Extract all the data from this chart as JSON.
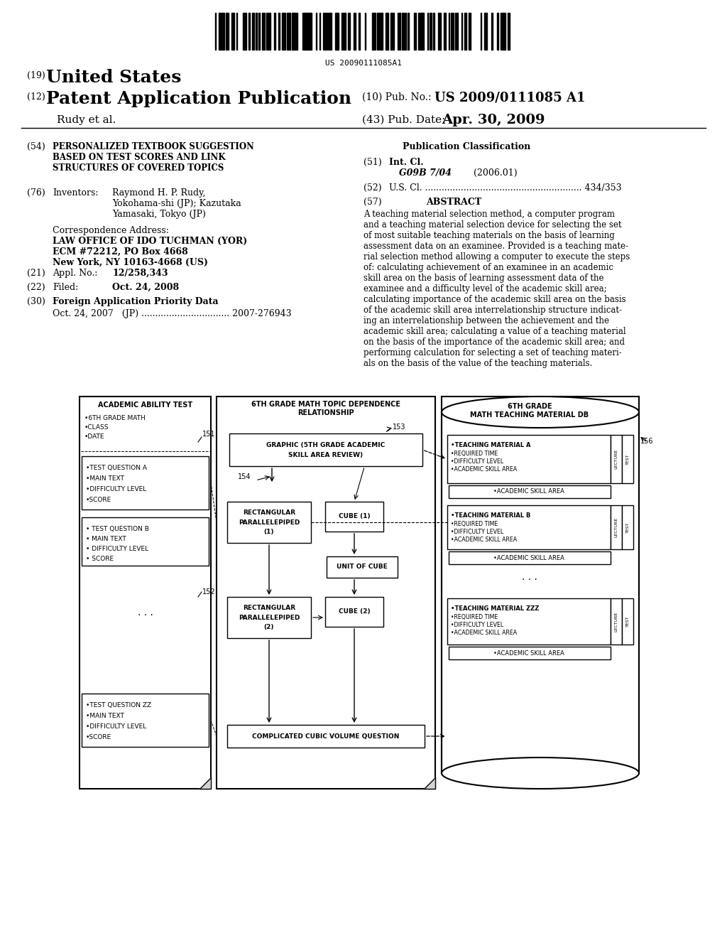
{
  "bg_color": "#ffffff",
  "barcode_text": "US 20090111085A1",
  "title19": "(19)",
  "title19_text": "United States",
  "title12": "(12)",
  "title12_text": "Patent Application Publication",
  "pubno_label": "(10) Pub. No.:",
  "pubno_val": "US 2009/0111085 A1",
  "author": "Rudy et al.",
  "pubdate_label": "(43) Pub. Date:",
  "pubdate_val": "Apr. 30, 2009",
  "field54_num": "(54)",
  "field54_text": "PERSONALIZED TEXTBOOK SUGGESTION\nBASED ON TEST SCORES AND LINK\nSTRUCTURES OF COVERED TOPICS",
  "field76_num": "(76)",
  "field76_label": "Inventors:",
  "field76_text": "Raymond H. P. Rudy,\nYokohama-shi (JP); Kazutaka\nYamasaki, Tokyo (JP)",
  "corr_label": "Correspondence Address:",
  "corr_text": "LAW OFFICE OF IDO TUCHMAN (YOR)\nECM #72212, PO Box 4668\nNew York, NY 10163-4668 (US)",
  "field21_num": "(21)",
  "field21_label": "Appl. No.:",
  "field21_val": "12/258,343",
  "field22_num": "(22)",
  "field22_label": "Filed:",
  "field22_val": "Oct. 24, 2008",
  "field30_num": "(30)",
  "field30_label": "Foreign Application Priority Data",
  "field30_text": "Oct. 24, 2007   (JP) ................................ 2007-276943",
  "pub_class_label": "Publication Classification",
  "field51_num": "(51)",
  "field51_label": "Int. Cl.",
  "field51_class": "G09B 7/04",
  "field51_year": "(2006.01)",
  "field52_num": "(52)",
  "field52_text": "U.S. Cl. ......................................................... 434/353",
  "field57_num": "(57)",
  "field57_label": "ABSTRACT",
  "abstract_text": "A teaching material selection method, a computer program\nand a teaching material selection device for selecting the set\nof most suitable teaching materials on the basis of learning\nassessment data on an examinee. Provided is a teaching mate-\nrial selection method allowing a computer to execute the steps\nof: calculating achievement of an examinee in an academic\nskill area on the basis of learning assessment data of the\nexaminee and a difficulty level of the academic skill area;\ncalculating importance of the academic skill area on the basis\nof the academic skill area interrelationship structure indicat-\ning an interrelationship between the achievement and the\nacademic skill area; calculating a value of a teaching material\non the basis of the importance of the academic skill area; and\nperforming calculation for selecting a set of teaching materi-\nals on the basis of the value of the teaching materials."
}
